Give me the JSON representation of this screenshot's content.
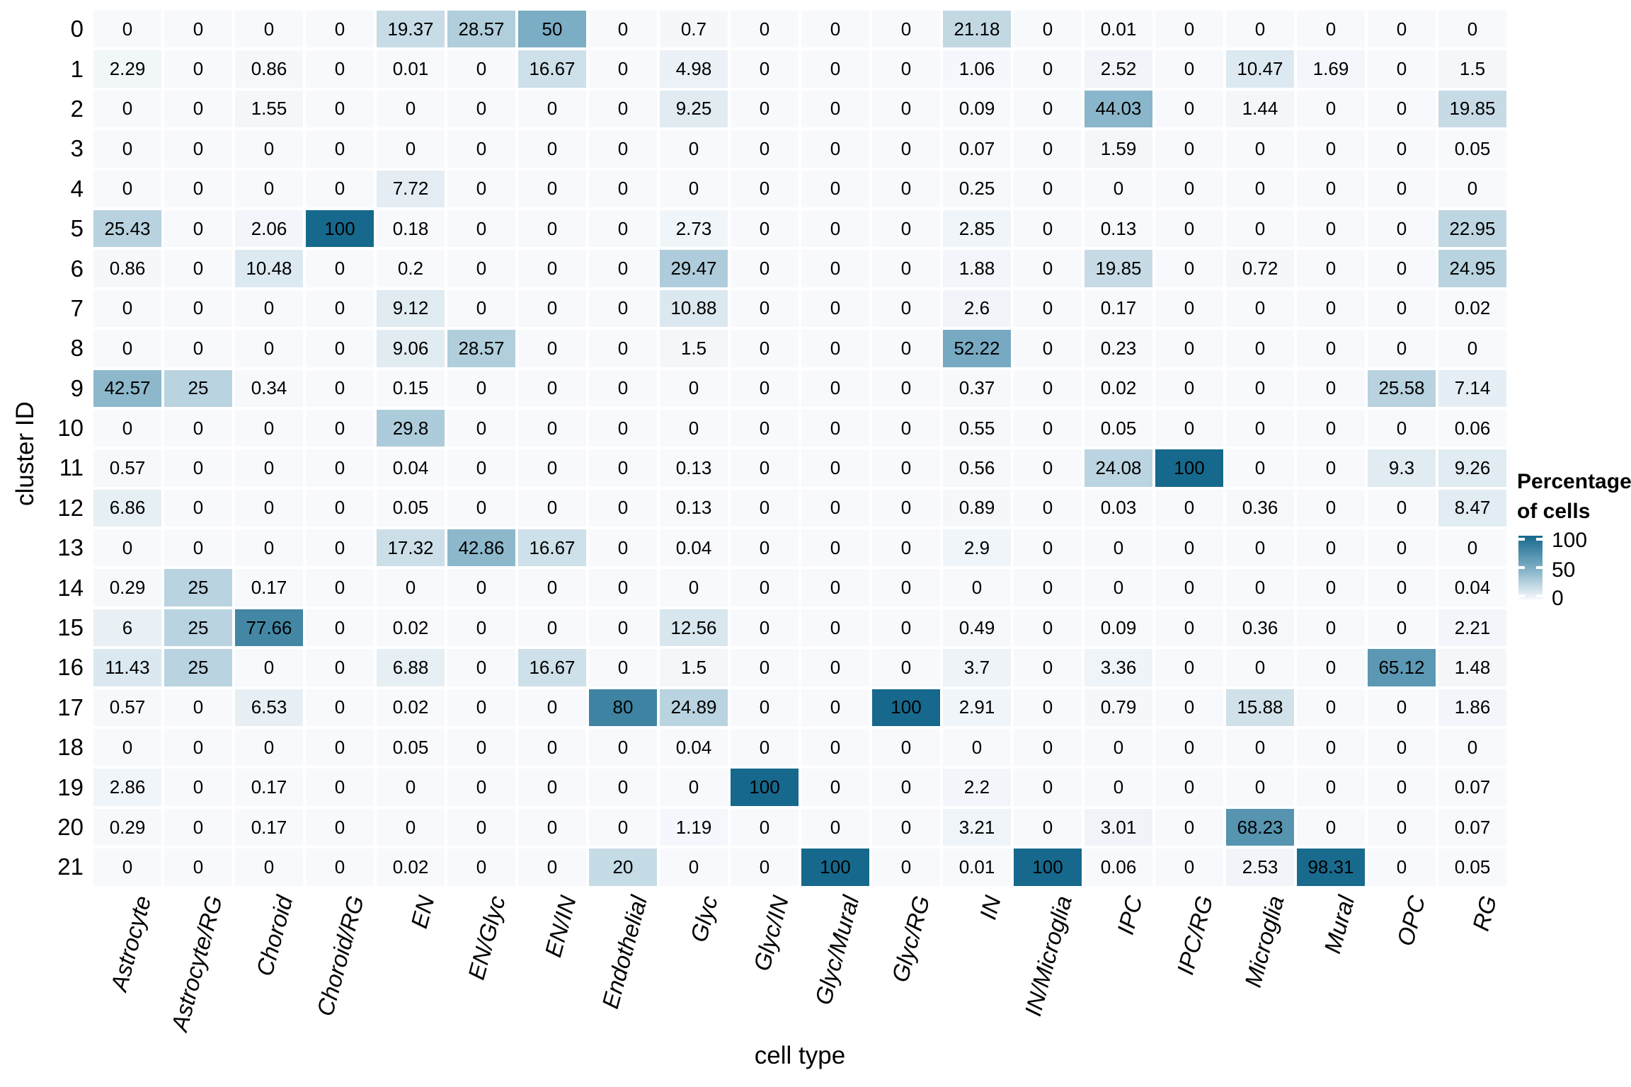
{
  "chart_data": {
    "type": "heatmap",
    "title": "",
    "xlabel": "cell type",
    "ylabel": "cluster ID",
    "grid": "off",
    "legend_position": "right",
    "value_range": [
      0,
      100
    ],
    "x_categories": [
      "Astrocyte",
      "Astrocyte/RG",
      "Choroid",
      "Choroid/RG",
      "EN",
      "EN/Glyc",
      "EN/IN",
      "Endothelial",
      "Glyc",
      "Glyc/IN",
      "Glyc/Mural",
      "Glyc/RG",
      "IN",
      "IN/Microglia",
      "IPC",
      "IPC/RG",
      "Microglia",
      "Mural",
      "OPC",
      "RG"
    ],
    "y_categories": [
      "0",
      "1",
      "2",
      "3",
      "4",
      "5",
      "6",
      "7",
      "8",
      "9",
      "10",
      "11",
      "12",
      "13",
      "14",
      "15",
      "16",
      "17",
      "18",
      "19",
      "20",
      "21"
    ],
    "values": [
      [
        "0",
        "0",
        "0",
        "0",
        "19.37",
        "28.57",
        "50",
        "0",
        "0.7",
        "0",
        "0",
        "0",
        "21.18",
        "0",
        "0.01",
        "0",
        "0",
        "0",
        "0",
        "0"
      ],
      [
        "2.29",
        "0",
        "0.86",
        "0",
        "0.01",
        "0",
        "16.67",
        "0",
        "4.98",
        "0",
        "0",
        "0",
        "1.06",
        "0",
        "2.52",
        "0",
        "10.47",
        "1.69",
        "0",
        "1.5"
      ],
      [
        "0",
        "0",
        "1.55",
        "0",
        "0",
        "0",
        "0",
        "0",
        "9.25",
        "0",
        "0",
        "0",
        "0.09",
        "0",
        "44.03",
        "0",
        "1.44",
        "0",
        "0",
        "19.85"
      ],
      [
        "0",
        "0",
        "0",
        "0",
        "0",
        "0",
        "0",
        "0",
        "0",
        "0",
        "0",
        "0",
        "0.07",
        "0",
        "1.59",
        "0",
        "0",
        "0",
        "0",
        "0.05"
      ],
      [
        "0",
        "0",
        "0",
        "0",
        "7.72",
        "0",
        "0",
        "0",
        "0",
        "0",
        "0",
        "0",
        "0.25",
        "0",
        "0",
        "0",
        "0",
        "0",
        "0",
        "0"
      ],
      [
        "25.43",
        "0",
        "2.06",
        "100",
        "0.18",
        "0",
        "0",
        "0",
        "2.73",
        "0",
        "0",
        "0",
        "2.85",
        "0",
        "0.13",
        "0",
        "0",
        "0",
        "0",
        "22.95"
      ],
      [
        "0.86",
        "0",
        "10.48",
        "0",
        "0.2",
        "0",
        "0",
        "0",
        "29.47",
        "0",
        "0",
        "0",
        "1.88",
        "0",
        "19.85",
        "0",
        "0.72",
        "0",
        "0",
        "24.95"
      ],
      [
        "0",
        "0",
        "0",
        "0",
        "9.12",
        "0",
        "0",
        "0",
        "10.88",
        "0",
        "0",
        "0",
        "2.6",
        "0",
        "0.17",
        "0",
        "0",
        "0",
        "0",
        "0.02"
      ],
      [
        "0",
        "0",
        "0",
        "0",
        "9.06",
        "28.57",
        "0",
        "0",
        "1.5",
        "0",
        "0",
        "0",
        "52.22",
        "0",
        "0.23",
        "0",
        "0",
        "0",
        "0",
        "0"
      ],
      [
        "42.57",
        "25",
        "0.34",
        "0",
        "0.15",
        "0",
        "0",
        "0",
        "0",
        "0",
        "0",
        "0",
        "0.37",
        "0",
        "0.02",
        "0",
        "0",
        "0",
        "25.58",
        "7.14"
      ],
      [
        "0",
        "0",
        "0",
        "0",
        "29.8",
        "0",
        "0",
        "0",
        "0",
        "0",
        "0",
        "0",
        "0.55",
        "0",
        "0.05",
        "0",
        "0",
        "0",
        "0",
        "0.06"
      ],
      [
        "0.57",
        "0",
        "0",
        "0",
        "0.04",
        "0",
        "0",
        "0",
        "0.13",
        "0",
        "0",
        "0",
        "0.56",
        "0",
        "24.08",
        "100",
        "0",
        "0",
        "9.3",
        "9.26"
      ],
      [
        "6.86",
        "0",
        "0",
        "0",
        "0.05",
        "0",
        "0",
        "0",
        "0.13",
        "0",
        "0",
        "0",
        "0.89",
        "0",
        "0.03",
        "0",
        "0.36",
        "0",
        "0",
        "8.47"
      ],
      [
        "0",
        "0",
        "0",
        "0",
        "17.32",
        "42.86",
        "16.67",
        "0",
        "0.04",
        "0",
        "0",
        "0",
        "2.9",
        "0",
        "0",
        "0",
        "0",
        "0",
        "0",
        "0"
      ],
      [
        "0.29",
        "25",
        "0.17",
        "0",
        "0",
        "0",
        "0",
        "0",
        "0",
        "0",
        "0",
        "0",
        "0",
        "0",
        "0",
        "0",
        "0",
        "0",
        "0",
        "0.04"
      ],
      [
        "6",
        "25",
        "77.66",
        "0",
        "0.02",
        "0",
        "0",
        "0",
        "12.56",
        "0",
        "0",
        "0",
        "0.49",
        "0",
        "0.09",
        "0",
        "0.36",
        "0",
        "0",
        "2.21"
      ],
      [
        "11.43",
        "25",
        "0",
        "0",
        "6.88",
        "0",
        "16.67",
        "0",
        "1.5",
        "0",
        "0",
        "0",
        "3.7",
        "0",
        "3.36",
        "0",
        "0",
        "0",
        "65.12",
        "1.48"
      ],
      [
        "0.57",
        "0",
        "6.53",
        "0",
        "0.02",
        "0",
        "0",
        "80",
        "24.89",
        "0",
        "0",
        "100",
        "2.91",
        "0",
        "0.79",
        "0",
        "15.88",
        "0",
        "0",
        "1.86"
      ],
      [
        "0",
        "0",
        "0",
        "0",
        "0.05",
        "0",
        "0",
        "0",
        "0.04",
        "0",
        "0",
        "0",
        "0",
        "0",
        "0",
        "0",
        "0",
        "0",
        "0",
        "0"
      ],
      [
        "2.86",
        "0",
        "0.17",
        "0",
        "0",
        "0",
        "0",
        "0",
        "0",
        "100",
        "0",
        "0",
        "2.2",
        "0",
        "0",
        "0",
        "0",
        "0",
        "0",
        "0.07"
      ],
      [
        "0.29",
        "0",
        "0.17",
        "0",
        "0",
        "0",
        "0",
        "0",
        "1.19",
        "0",
        "0",
        "0",
        "3.21",
        "0",
        "3.01",
        "0",
        "68.23",
        "0",
        "0",
        "0.07"
      ],
      [
        "0",
        "0",
        "0",
        "0",
        "0.02",
        "0",
        "0",
        "20",
        "0",
        "0",
        "100",
        "0",
        "0.01",
        "100",
        "0.06",
        "0",
        "2.53",
        "98.31",
        "0",
        "0.05"
      ]
    ],
    "legend": {
      "title_lines": [
        "Percentage",
        "of cells"
      ],
      "ticks": [
        "100",
        "50",
        "0"
      ]
    },
    "color_scale": [
      {
        "at": 0,
        "color": "#f7f9fc"
      },
      {
        "at": 50,
        "color": "#7badc4"
      },
      {
        "at": 100,
        "color": "#16698c"
      }
    ]
  }
}
